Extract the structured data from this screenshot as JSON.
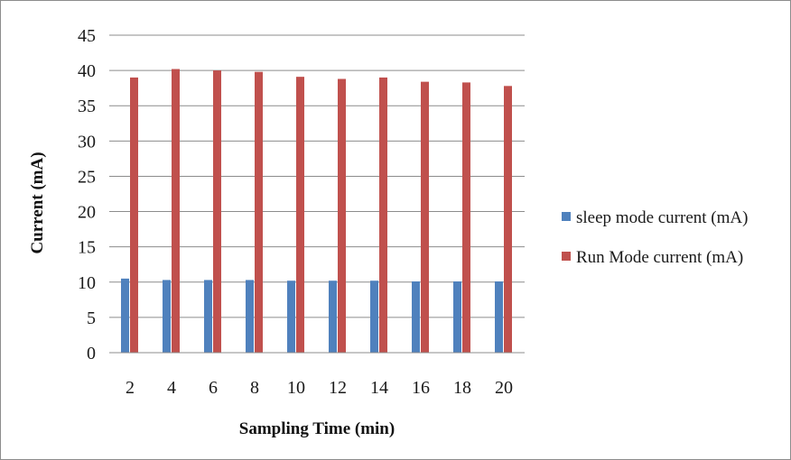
{
  "chart_data": {
    "type": "bar",
    "title": "",
    "xlabel": "Sampling Time (min)",
    "ylabel": "Current (mA)",
    "categories": [
      "2",
      "4",
      "6",
      "8",
      "10",
      "12",
      "14",
      "16",
      "18",
      "20"
    ],
    "ylim": [
      0,
      45
    ],
    "yticks": [
      0,
      5,
      10,
      15,
      20,
      25,
      30,
      35,
      40,
      45
    ],
    "grid": true,
    "legend_position": "right",
    "series": [
      {
        "name": "sleep mode current (mA)",
        "color": "#4f81bd",
        "values": [
          10.5,
          10.3,
          10.3,
          10.3,
          10.2,
          10.2,
          10.2,
          10.1,
          10.1,
          10.1
        ]
      },
      {
        "name": "Run Mode current (mA)",
        "color": "#c0504d",
        "values": [
          39.0,
          40.2,
          40.0,
          39.8,
          39.1,
          38.8,
          39.0,
          38.4,
          38.3,
          37.8
        ]
      }
    ]
  }
}
